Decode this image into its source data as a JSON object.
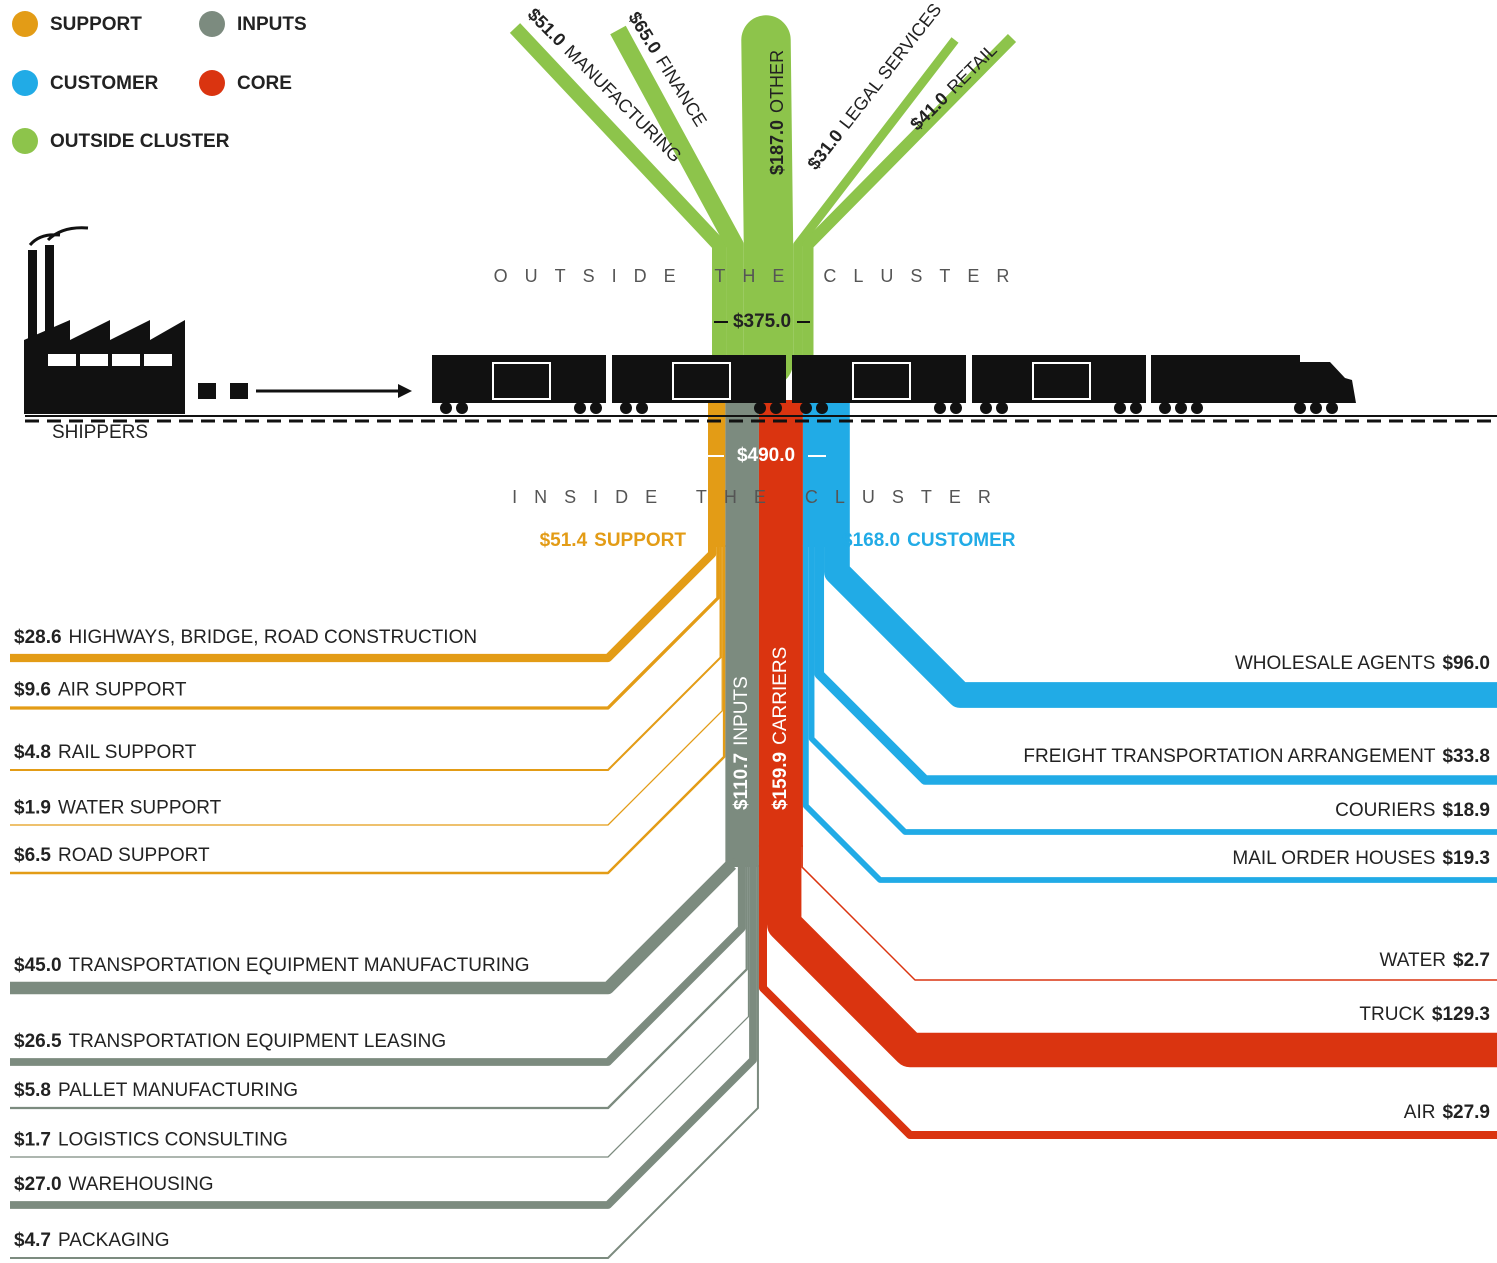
{
  "legend": [
    {
      "name": "SUPPORT",
      "color": "#e39c16"
    },
    {
      "name": "INPUTS",
      "color": "#7c8b7f"
    },
    {
      "name": "CUSTOMER",
      "color": "#21abe6"
    },
    {
      "name": "CORE",
      "color": "#da3410"
    },
    {
      "name": "OUTSIDE CLUSTER",
      "color": "#8dc44b"
    }
  ],
  "shippers": "SHIPPERS",
  "outside": {
    "label": "OUTSIDE THE CLUSTER",
    "total": 375.0,
    "total_label": "$375.0",
    "color": "#8dc44b",
    "branches": [
      {
        "name": "MANUFACTURING",
        "value": 51.0,
        "value_label": "$51.0"
      },
      {
        "name": "FINANCE",
        "value": 65.0,
        "value_label": "$65.0"
      },
      {
        "name": "OTHER",
        "value": 187.0,
        "value_label": "$187.0"
      },
      {
        "name": "LEGAL SERVICES",
        "value": 31.0,
        "value_label": "$31.0"
      },
      {
        "name": "RETAIL",
        "value": 41.0,
        "value_label": "$41.0"
      }
    ]
  },
  "inside": {
    "label": "INSIDE THE CLUSTER",
    "total": 490.0,
    "total_label": "$490.0",
    "groups": [
      {
        "name": "SUPPORT",
        "value": 51.4,
        "value_label": "$51.4",
        "color": "#e39c16",
        "items": [
          {
            "name": "HIGHWAYS, BRIDGE, ROAD CONSTRUCTION",
            "value": 28.6,
            "value_label": "$28.6"
          },
          {
            "name": "AIR SUPPORT",
            "value": 9.6,
            "value_label": "$9.6"
          },
          {
            "name": "RAIL SUPPORT",
            "value": 4.8,
            "value_label": "$4.8"
          },
          {
            "name": "WATER SUPPORT",
            "value": 1.9,
            "value_label": "$1.9"
          },
          {
            "name": "ROAD SUPPORT",
            "value": 6.5,
            "value_label": "$6.5"
          }
        ]
      },
      {
        "name": "INPUTS",
        "value": 110.7,
        "value_label": "$110.7",
        "color": "#7c8b7f",
        "items": [
          {
            "name": "TRANSPORTATION EQUIPMENT MANUFACTURING",
            "value": 45.0,
            "value_label": "$45.0"
          },
          {
            "name": "TRANSPORTATION EQUIPMENT LEASING",
            "value": 26.5,
            "value_label": "$26.5"
          },
          {
            "name": "PALLET MANUFACTURING",
            "value": 5.8,
            "value_label": "$5.8"
          },
          {
            "name": "LOGISTICS CONSULTING",
            "value": 1.7,
            "value_label": "$1.7"
          },
          {
            "name": "WAREHOUSING",
            "value": 27.0,
            "value_label": "$27.0"
          },
          {
            "name": "PACKAGING",
            "value": 4.7,
            "value_label": "$4.7"
          }
        ]
      },
      {
        "name": "CARRIERS",
        "value": 159.9,
        "value_label": "$159.9",
        "color": "#da3410",
        "items": [
          {
            "name": "WATER",
            "value": 2.7,
            "value_label": "$2.7"
          },
          {
            "name": "TRUCK",
            "value": 129.3,
            "value_label": "$129.3"
          },
          {
            "name": "AIR",
            "value": 27.9,
            "value_label": "$27.9"
          }
        ]
      },
      {
        "name": "CUSTOMER",
        "value": 168.0,
        "value_label": "$168.0",
        "color": "#21abe6",
        "items": [
          {
            "name": "WHOLESALE AGENTS",
            "value": 96.0,
            "value_label": "$96.0"
          },
          {
            "name": "FREIGHT TRANSPORTATION ARRANGEMENT",
            "value": 33.8,
            "value_label": "$33.8"
          },
          {
            "name": "COURIERS",
            "value": 18.9,
            "value_label": "$18.9"
          },
          {
            "name": "MAIL ORDER HOUSES",
            "value": 19.3,
            "value_label": "$19.3"
          }
        ]
      }
    ]
  }
}
